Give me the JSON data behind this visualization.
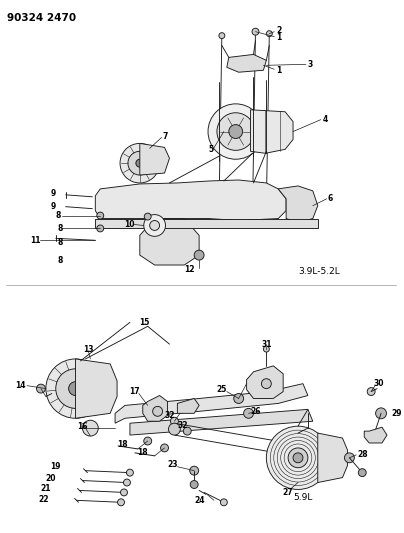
{
  "title": "90324 2470",
  "bg_color": "#ffffff",
  "lc": "#1a1a1a",
  "fig_width": 4.04,
  "fig_height": 5.33,
  "dpi": 100,
  "label1": "3.9L-5.2L",
  "label2": "5.9L"
}
